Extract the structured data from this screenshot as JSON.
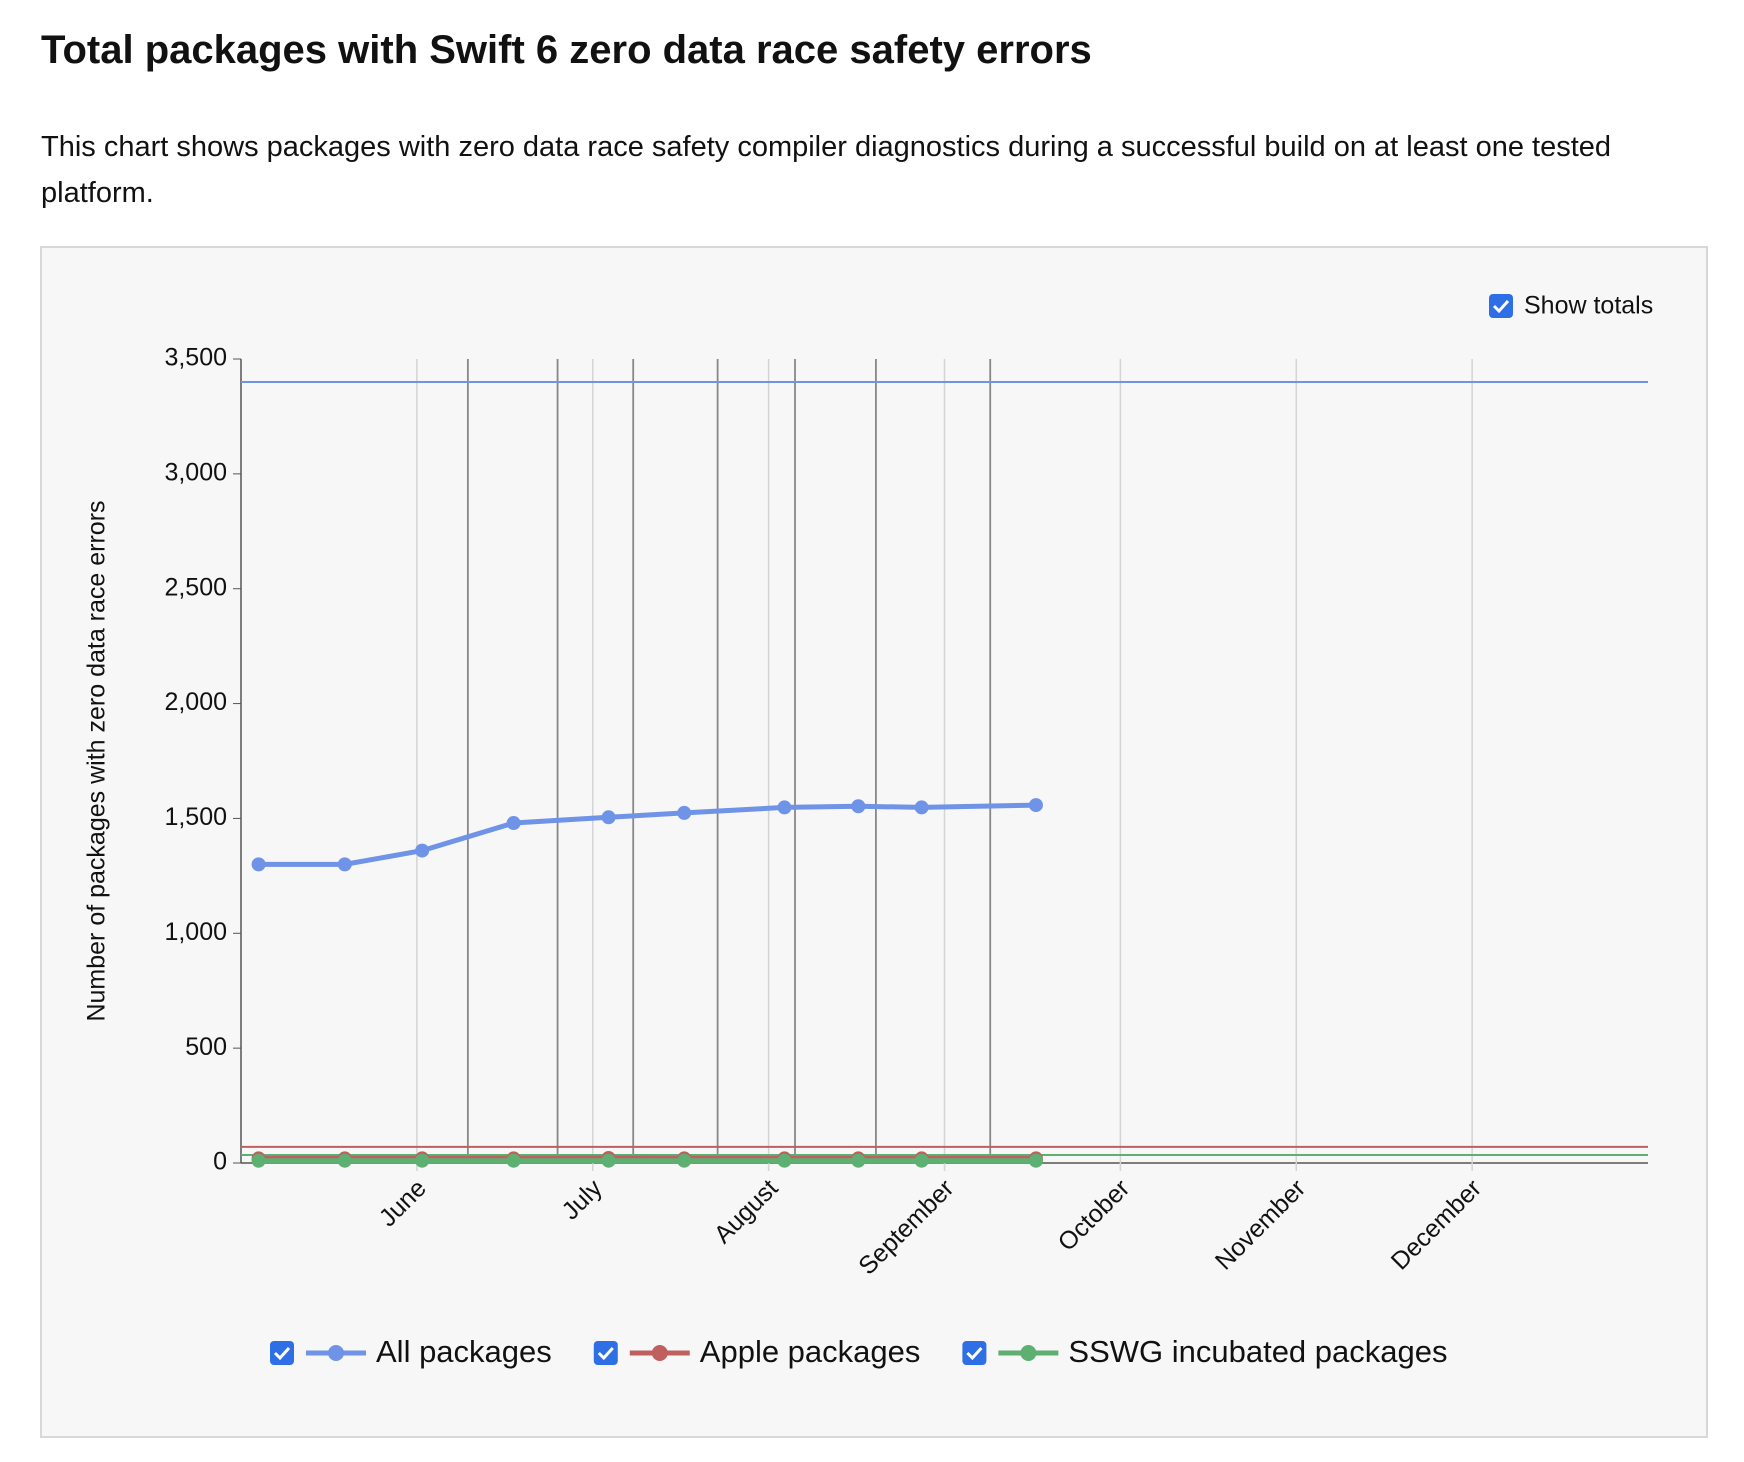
{
  "title": "Total packages with Swift 6 zero data race safety errors",
  "description": "This chart shows packages with zero data race safety compiler diagnostics during a successful build on at least one tested platform.",
  "chart_data": {
    "type": "line",
    "ylabel": "Number of packages with zero data race errors",
    "x": [
      5.1,
      5.59,
      6.03,
      6.55,
      7.09,
      7.52,
      8.09,
      8.51,
      8.87,
      9.52
    ],
    "xlim": [
      5,
      13
    ],
    "xticks": [
      {
        "value": 6,
        "label": "June"
      },
      {
        "value": 7,
        "label": "July"
      },
      {
        "value": 8,
        "label": "August"
      },
      {
        "value": 9,
        "label": "September"
      },
      {
        "value": 10,
        "label": "October"
      },
      {
        "value": 11,
        "label": "November"
      },
      {
        "value": 12,
        "label": "December"
      }
    ],
    "event_lines": [
      6.29,
      6.8,
      7.23,
      7.71,
      8.15,
      8.61,
      9.26
    ],
    "ylim": [
      0,
      3500
    ],
    "yticks": [
      0,
      500,
      {
        "value": 1000,
        "label": "1,000"
      },
      {
        "value": 1500,
        "label": "1,500"
      },
      {
        "value": 2000,
        "label": "2,000"
      },
      {
        "value": 2500,
        "label": "2,500"
      },
      {
        "value": 3000,
        "label": "3,000"
      },
      {
        "value": 3500,
        "label": "3,500"
      }
    ],
    "show_totals_label": "Show totals",
    "series": [
      {
        "name": "All packages",
        "color": "#6f93e6",
        "total": 3400,
        "values": [
          1300,
          1300,
          1360,
          1480,
          1505,
          1524,
          1548,
          1553,
          1548,
          1558
        ]
      },
      {
        "name": "Apple packages",
        "color": "#c0605e",
        "total": 70,
        "values": [
          20,
          20,
          20,
          20,
          22,
          20,
          20,
          20,
          20,
          20
        ]
      },
      {
        "name": "SSWG incubated packages",
        "color": "#5daf72",
        "total": 35,
        "values": [
          10,
          10,
          10,
          10,
          10,
          10,
          10,
          10,
          10,
          10
        ]
      }
    ]
  }
}
